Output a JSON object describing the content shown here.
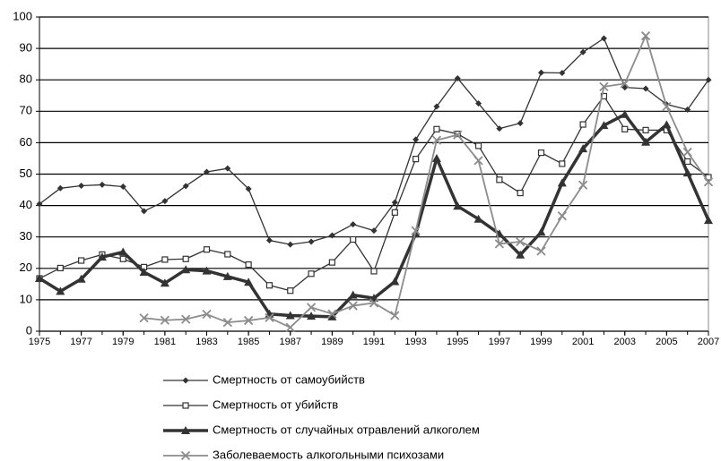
{
  "chart_data": {
    "type": "line",
    "x": [
      1975,
      1976,
      1977,
      1978,
      1979,
      1980,
      1981,
      1982,
      1983,
      1984,
      1985,
      1986,
      1987,
      1988,
      1989,
      1990,
      1991,
      1992,
      1993,
      1994,
      1995,
      1996,
      1997,
      1998,
      1999,
      2000,
      2001,
      2002,
      2003,
      2004,
      2005,
      2006,
      2007
    ],
    "xlim": [
      1975,
      2007
    ],
    "xticks": [
      1975,
      1977,
      1979,
      1981,
      1983,
      1985,
      1987,
      1989,
      1991,
      1993,
      1995,
      1997,
      1999,
      2001,
      2003,
      2005,
      2007
    ],
    "ylim": [
      0,
      100
    ],
    "yticks": [
      0,
      10,
      20,
      30,
      40,
      50,
      60,
      70,
      80,
      90,
      100
    ],
    "grid": true,
    "series": [
      {
        "name": "Смертность от самоубийств",
        "color": "#333333",
        "marker": "diamond",
        "line_width": 1.3,
        "values": [
          40.5,
          45.5,
          46.3,
          46.6,
          46,
          38.2,
          41.4,
          46.2,
          50.7,
          51.8,
          45.3,
          28.9,
          27.6,
          28.5,
          30.5,
          34,
          32,
          41,
          61,
          71.5,
          80.5,
          72.5,
          64.5,
          66.2,
          82.3,
          82.2,
          88.8,
          93.2,
          77.6,
          77.2,
          72.2,
          70.5,
          80
        ]
      },
      {
        "name": "Смертность от убийств",
        "color": "#333333",
        "marker": "square",
        "line_width": 1.3,
        "values": [
          16.8,
          20.1,
          22.5,
          24.4,
          23,
          20.4,
          22.8,
          23,
          26,
          24.5,
          21.2,
          14.6,
          12.9,
          18.3,
          21.9,
          29.2,
          19.1,
          37.8,
          54.8,
          64.3,
          62.8,
          59,
          48.2,
          44,
          56.8,
          53.3,
          65.8,
          74.8,
          64.3,
          64,
          64,
          54,
          49
        ]
      },
      {
        "name": "Смертность от случайных отравлений алкоголем",
        "color": "#333333",
        "marker": "triangle",
        "line_width": 3.5,
        "values": [
          16.8,
          12.7,
          16.6,
          23.6,
          25.2,
          18.8,
          15.3,
          19.6,
          19.2,
          17.4,
          15.6,
          5.5,
          5,
          4.8,
          4.6,
          11.5,
          10.5,
          15.8,
          31,
          55,
          39.8,
          35.7,
          31,
          24.3,
          31.5,
          47.2,
          58.1,
          65.5,
          69,
          60.2,
          65.7,
          50.4,
          35.3
        ]
      },
      {
        "name": "Заболеваемость алкогольными психозами",
        "color": "#8c8c8c",
        "marker": "x",
        "line_width": 1.8,
        "values": [
          null,
          null,
          null,
          null,
          null,
          4.2,
          3.5,
          3.8,
          5.4,
          2.8,
          3.4,
          4.3,
          1.2,
          7.6,
          5.5,
          8.1,
          9,
          5,
          32,
          60.8,
          62.5,
          54.3,
          27.8,
          28.5,
          25.5,
          36.7,
          46.5,
          77.8,
          78.8,
          94,
          71.5,
          57,
          47.5
        ]
      }
    ],
    "legend": "bottom"
  }
}
